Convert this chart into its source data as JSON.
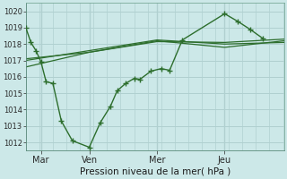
{
  "xlabel": "Pression niveau de la mer( hPa )",
  "ylim": [
    1011.5,
    1020.5
  ],
  "yticks": [
    1012,
    1013,
    1014,
    1015,
    1016,
    1017,
    1018,
    1019,
    1020
  ],
  "bg_color": "#cce8e8",
  "grid_color": "#b0d0d0",
  "line_color": "#2d6e2d",
  "xtick_labels": [
    "Mar",
    "Ven",
    "Mer",
    "Jeu"
  ],
  "xtick_positions": [
    18,
    75,
    155,
    235
  ],
  "xlim": [
    0,
    305
  ],
  "vlines": [
    18,
    75,
    155,
    235
  ],
  "series1_x": [
    0,
    6,
    12,
    18,
    24,
    32,
    42,
    55,
    75,
    88,
    100,
    108,
    118,
    128,
    135,
    148,
    160,
    170,
    185,
    235,
    250,
    265,
    280
  ],
  "series1_y": [
    1019.0,
    1018.1,
    1017.6,
    1016.9,
    1015.7,
    1015.6,
    1013.3,
    1012.1,
    1011.7,
    1013.2,
    1014.2,
    1015.15,
    1015.6,
    1015.9,
    1015.85,
    1016.35,
    1016.5,
    1016.4,
    1018.25,
    1019.85,
    1019.4,
    1018.9,
    1018.35
  ],
  "series2_x": [
    0,
    75,
    155,
    235,
    305
  ],
  "series2_y": [
    1017.1,
    1017.5,
    1018.15,
    1018.1,
    1018.3
  ],
  "series3_x": [
    0,
    75,
    155,
    235,
    305
  ],
  "series3_y": [
    1016.6,
    1017.5,
    1018.2,
    1017.8,
    1018.2
  ],
  "series4_x": [
    0,
    75,
    155,
    235,
    305
  ],
  "series4_y": [
    1017.0,
    1017.6,
    1018.25,
    1018.0,
    1018.1
  ]
}
